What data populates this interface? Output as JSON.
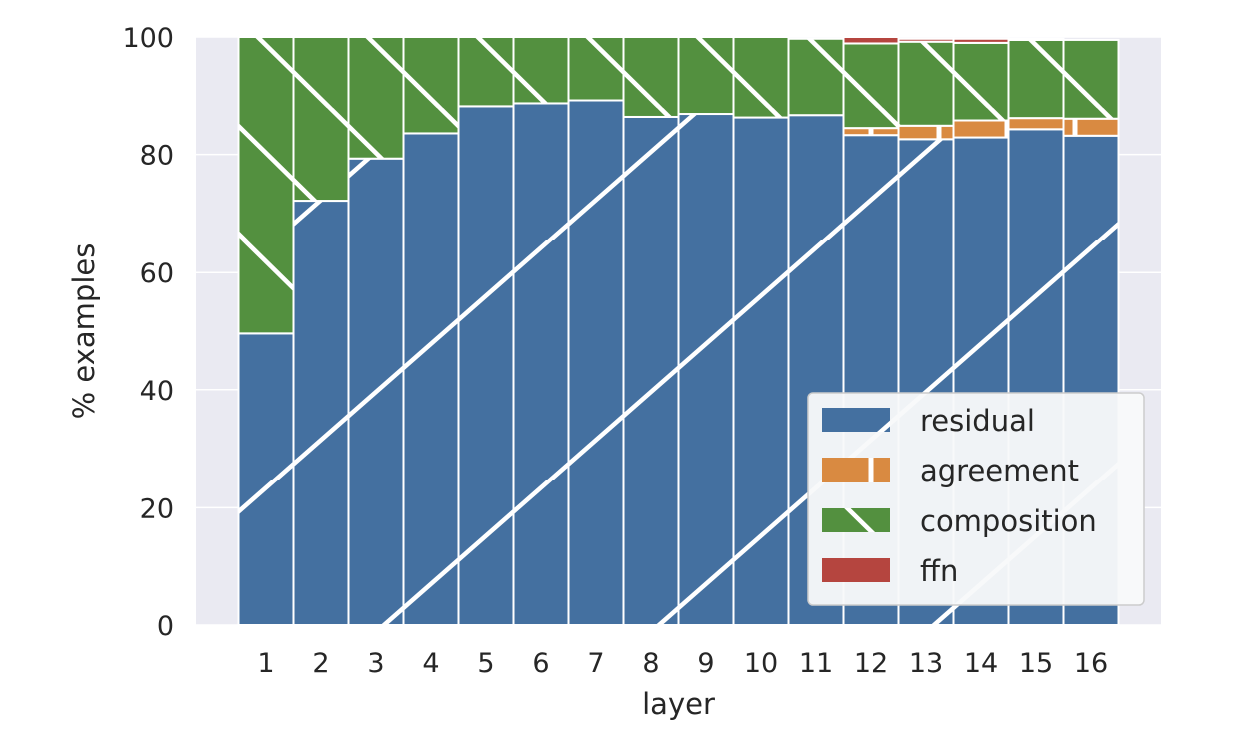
{
  "chart_data": {
    "type": "bar",
    "stacked": true,
    "categories": [
      "1",
      "2",
      "3",
      "4",
      "5",
      "6",
      "7",
      "8",
      "9",
      "10",
      "11",
      "12",
      "13",
      "14",
      "15",
      "16"
    ],
    "series": [
      {
        "name": "residual",
        "color": "#4470a0",
        "hatch": "forward-diagonal",
        "values": [
          49.6,
          72.1,
          79.3,
          83.6,
          88.2,
          88.7,
          89.2,
          86.4,
          86.9,
          86.3,
          86.7,
          83.3,
          82.6,
          82.9,
          84.3,
          83.2
        ]
      },
      {
        "name": "agreement",
        "color": "#d98a41",
        "hatch": "vertical",
        "values": [
          0,
          0,
          0,
          0,
          0,
          0,
          0,
          0,
          0,
          0,
          0,
          1.2,
          2.3,
          2.9,
          1.9,
          2.9
        ]
      },
      {
        "name": "composition",
        "color": "#53903f",
        "hatch": "backward-diagonal",
        "values": [
          50.4,
          27.9,
          20.7,
          16.4,
          11.8,
          11.3,
          10.8,
          13.6,
          13.1,
          13.7,
          13.0,
          14.4,
          14.3,
          13.2,
          13.3,
          13.4
        ]
      },
      {
        "name": "ffn",
        "color": "#b5453f",
        "hatch": "none",
        "values": [
          0,
          0,
          0,
          0,
          0,
          0,
          0,
          0,
          0,
          0,
          0,
          1.1,
          0.5,
          0.7,
          0.2,
          0
        ]
      }
    ],
    "xlabel": "layer",
    "ylabel": "% examples",
    "ylim": [
      0,
      100
    ],
    "yticks": [
      "0",
      "20",
      "40",
      "60",
      "80",
      "100"
    ],
    "grid": true,
    "legend_position": "lower-right",
    "background": "#eaeaf2"
  }
}
